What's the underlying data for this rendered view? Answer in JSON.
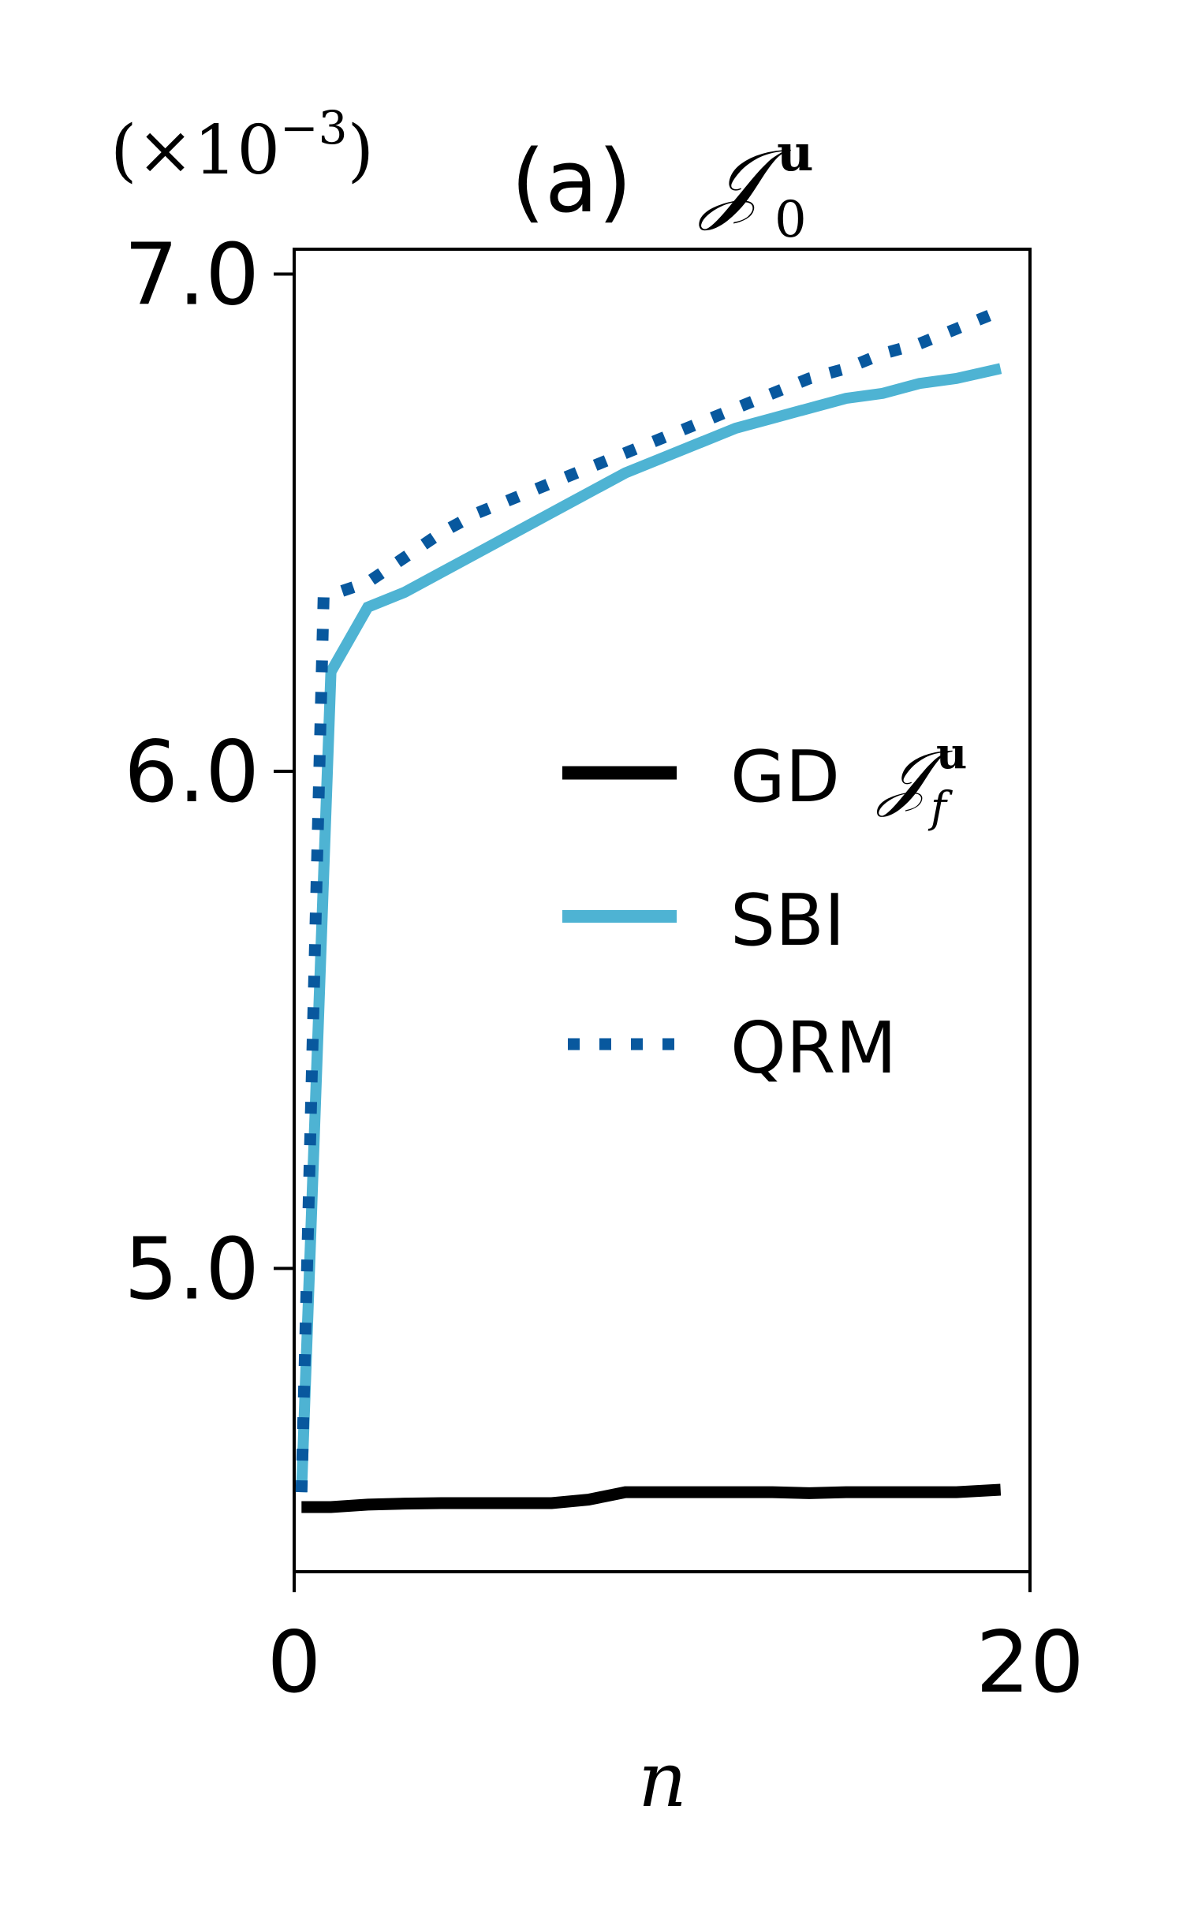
{
  "chart_data": {
    "type": "line",
    "title": {
      "prefix": "(a)",
      "symbol": "𝒥",
      "superscript": "u",
      "subscript": "0"
    },
    "axis_multiplier": {
      "text": "(×10",
      "exponent": "−3",
      "close": ")"
    },
    "xlabel": "n",
    "ylabel": "",
    "xlim": [
      0,
      20
    ],
    "ylim": [
      4.39,
      7.05
    ],
    "xticks": [
      0,
      20
    ],
    "xtick_labels": [
      "0",
      "20"
    ],
    "yticks": [
      5.0,
      6.0,
      7.0
    ],
    "ytick_labels": [
      "5.0",
      "6.0",
      "7.0"
    ],
    "grid": false,
    "legend": {
      "position": "center-right"
    },
    "series": [
      {
        "name": "GD",
        "name_symbol": "𝒥",
        "name_superscript": "u",
        "name_subscript": "f",
        "color": "#000000",
        "style": "solid",
        "x": [
          0.2,
          1,
          2,
          3,
          4,
          5,
          6,
          7,
          8,
          9,
          10,
          11,
          12,
          13,
          14,
          15,
          16,
          17,
          18,
          19.2
        ],
        "y": [
          4.52,
          4.52,
          4.525,
          4.527,
          4.528,
          4.528,
          4.528,
          4.528,
          4.535,
          4.55,
          4.55,
          4.55,
          4.55,
          4.55,
          4.548,
          4.55,
          4.55,
          4.55,
          4.55,
          4.555
        ]
      },
      {
        "name": "SBI",
        "color": "#4EB3D3",
        "style": "solid",
        "x": [
          0.2,
          1,
          2,
          3,
          4,
          5,
          6,
          7,
          8,
          9,
          10,
          11,
          12,
          13,
          14,
          15,
          16,
          17,
          18,
          19.2
        ],
        "y": [
          4.55,
          6.2,
          6.33,
          6.36,
          6.4,
          6.44,
          6.48,
          6.52,
          6.56,
          6.6,
          6.63,
          6.66,
          6.69,
          6.71,
          6.73,
          6.75,
          6.76,
          6.78,
          6.79,
          6.81
        ]
      },
      {
        "name": "QRM",
        "color": "#08589E",
        "style": "dotted",
        "x": [
          0.2,
          0.8,
          2,
          3,
          4,
          5,
          6,
          7,
          8,
          9,
          10,
          11,
          12,
          13,
          14,
          15,
          16,
          17,
          18,
          19
        ],
        "y": [
          4.55,
          6.35,
          6.38,
          6.43,
          6.48,
          6.52,
          6.55,
          6.58,
          6.61,
          6.64,
          6.67,
          6.7,
          6.73,
          6.76,
          6.79,
          6.81,
          6.84,
          6.86,
          6.89,
          6.92
        ]
      }
    ]
  }
}
